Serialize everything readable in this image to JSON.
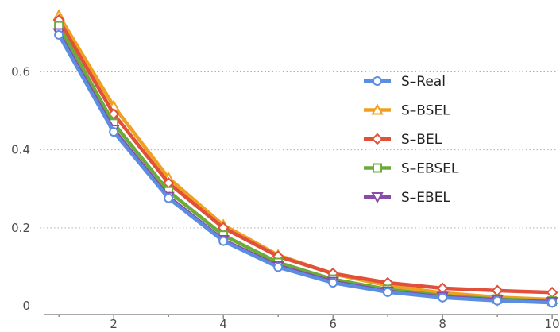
{
  "chart_data": {
    "type": "line",
    "title": "",
    "xlabel": "",
    "ylabel": "",
    "xlim": [
      0.65,
      10.1
    ],
    "ylim": [
      0,
      0.76
    ],
    "x": [
      1,
      2,
      3,
      4,
      5,
      6,
      7,
      8,
      9,
      10
    ],
    "x_ticks": [
      "2",
      "4",
      "6",
      "8",
      "10"
    ],
    "y_ticks": [
      "0",
      "0.2",
      "0.4",
      "0.6"
    ],
    "grid": "horizontal-dotted",
    "legend_position": "right",
    "series": [
      {
        "name": "S–BSEL",
        "color": "#f0a020",
        "marker": "triangle-up",
        "values": [
          0.745,
          0.512,
          0.328,
          0.207,
          0.13,
          0.082,
          0.052,
          0.033,
          0.022,
          0.016
        ]
      },
      {
        "name": "S–BEL",
        "color": "#e0503a",
        "marker": "diamond",
        "values": [
          0.733,
          0.492,
          0.315,
          0.2,
          0.127,
          0.083,
          0.059,
          0.045,
          0.039,
          0.034
        ]
      },
      {
        "name": "S–EBSEL",
        "color": "#6aab3a",
        "marker": "square",
        "values": [
          0.718,
          0.468,
          0.294,
          0.181,
          0.111,
          0.068,
          0.042,
          0.026,
          0.017,
          0.012
        ]
      },
      {
        "name": "S–EBEL",
        "color": "#8a4aa8",
        "marker": "triangle-down",
        "values": [
          0.7,
          0.452,
          0.28,
          0.169,
          0.102,
          0.062,
          0.037,
          0.023,
          0.015,
          0.01
        ]
      },
      {
        "name": "S–Real",
        "color": "#5b8ee0",
        "marker": "circle",
        "values": [
          0.695,
          0.446,
          0.276,
          0.166,
          0.099,
          0.059,
          0.035,
          0.021,
          0.013,
          0.008
        ]
      }
    ],
    "legend_order": [
      "S–Real",
      "S–BSEL",
      "S–BEL",
      "S–EBSEL",
      "S–EBEL"
    ]
  }
}
